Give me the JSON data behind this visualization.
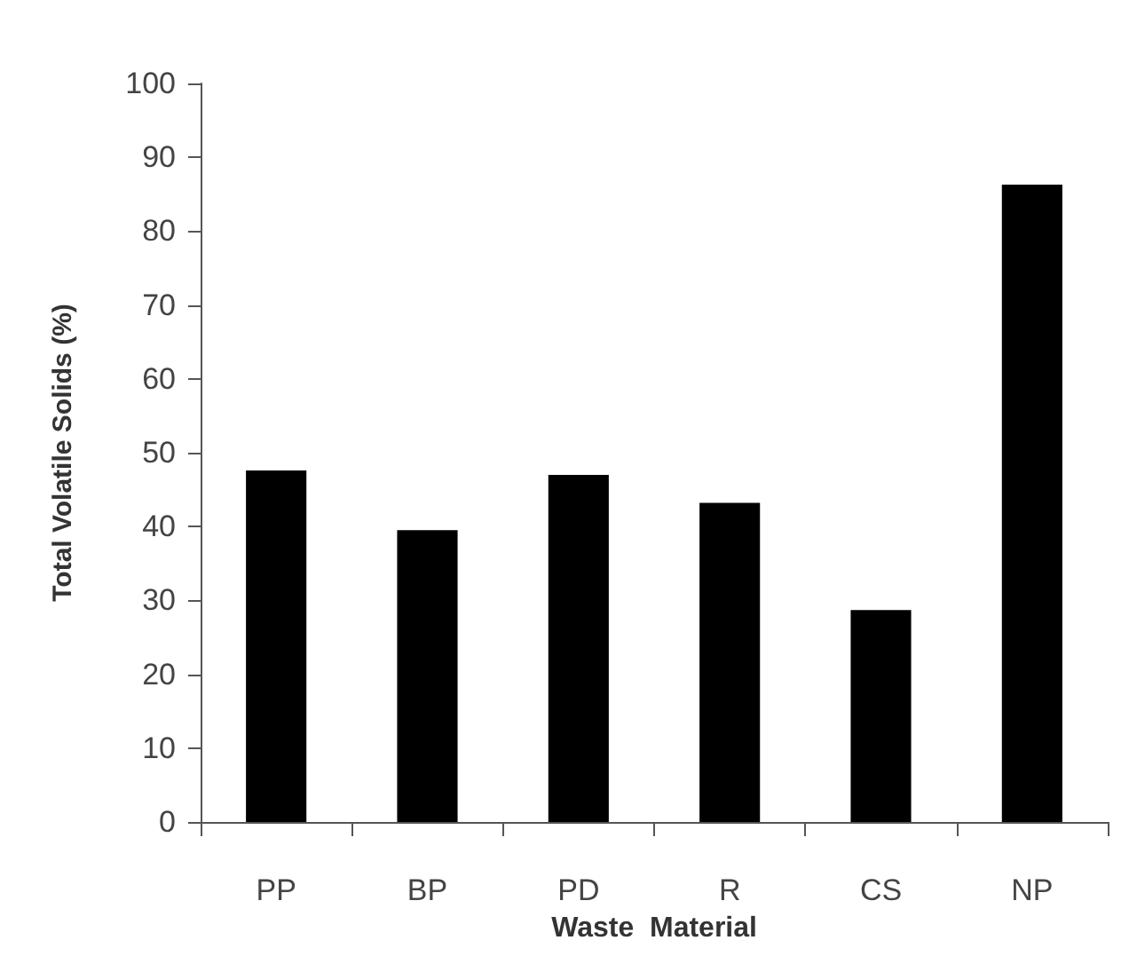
{
  "chart_data": {
    "type": "bar",
    "xlabel": "Waste  Material",
    "ylabel": "Total Volatile Solids (%)",
    "categories": [
      "PP",
      "BP",
      "PD",
      "R",
      "CS",
      "NP"
    ],
    "values": [
      47.6,
      39.5,
      47.0,
      43.2,
      28.7,
      86.3
    ],
    "color": "#000000",
    "ylim": [
      0,
      100
    ],
    "yticks": [
      0,
      10,
      20,
      30,
      40,
      50,
      60,
      70,
      80,
      90,
      100
    ],
    "grid": false
  }
}
